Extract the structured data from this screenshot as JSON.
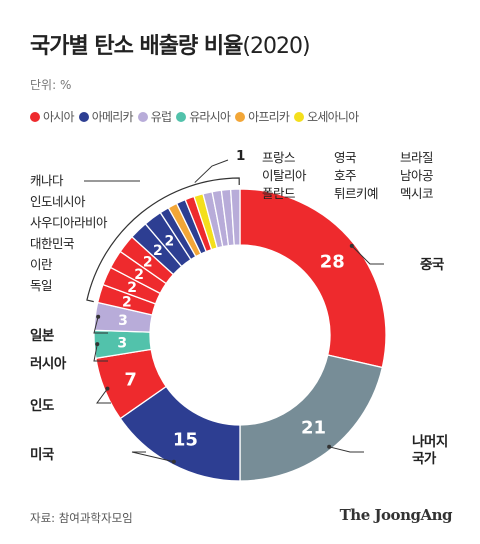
{
  "title": "국가별 탄소 배출량 비율",
  "title_year": "(2020)",
  "unit": "단위: %",
  "source": "자료: 참여과학자모임",
  "brand": "The JoongAng",
  "colors": {
    "asia": "#ee2a2d",
    "america": "#2d3e92",
    "europe": "#b8acd9",
    "eurasia": "#52c2ab",
    "africa": "#f2a637",
    "oceania": "#f4df1c",
    "rest": "#778d97"
  },
  "legend": [
    {
      "key": "asia",
      "label": "아시아"
    },
    {
      "key": "america",
      "label": "아메리카"
    },
    {
      "key": "europe",
      "label": "유럽"
    },
    {
      "key": "eurasia",
      "label": "유라시아"
    },
    {
      "key": "africa",
      "label": "아프리카"
    },
    {
      "key": "oceania",
      "label": "오세아니아"
    }
  ],
  "chart_data": {
    "type": "pie",
    "donut": true,
    "slices": [
      {
        "label": "중국",
        "value": 28,
        "region": "asia",
        "shown_value": "28"
      },
      {
        "label": "나머지 국가",
        "value": 21,
        "region": "rest",
        "shown_value": "21"
      },
      {
        "label": "미국",
        "value": 15,
        "region": "america",
        "shown_value": "15"
      },
      {
        "label": "인도",
        "value": 7,
        "region": "asia",
        "shown_value": "7"
      },
      {
        "label": "러시아",
        "value": 3,
        "region": "eurasia",
        "shown_value": "3"
      },
      {
        "label": "일본",
        "value": 3,
        "region": "europe",
        "shown_value": "3"
      },
      {
        "label": "독일",
        "value": 2,
        "region": "asia",
        "shown_value": "2"
      },
      {
        "label": "이란",
        "value": 2,
        "region": "asia",
        "shown_value": "2"
      },
      {
        "label": "대한민국",
        "value": 2,
        "region": "asia",
        "shown_value": "2"
      },
      {
        "label": "사우디아라비아",
        "value": 2,
        "region": "asia",
        "shown_value": "2"
      },
      {
        "label": "인도네시아",
        "value": 2,
        "region": "america",
        "shown_value": "2"
      },
      {
        "label": "캐나다",
        "value": 2,
        "region": "america",
        "shown_value": "2"
      },
      {
        "label": "멕시코",
        "value": 1,
        "region": "america",
        "shown_value": ""
      },
      {
        "label": "남아공",
        "value": 1,
        "region": "africa",
        "shown_value": ""
      },
      {
        "label": "브라질",
        "value": 1,
        "region": "america",
        "shown_value": ""
      },
      {
        "label": "튀르키예",
        "value": 1,
        "region": "asia",
        "shown_value": ""
      },
      {
        "label": "호주",
        "value": 1,
        "region": "oceania",
        "shown_value": ""
      },
      {
        "label": "영국",
        "value": 1,
        "region": "europe",
        "shown_value": ""
      },
      {
        "label": "폴란드",
        "value": 1,
        "region": "europe",
        "shown_value": ""
      },
      {
        "label": "이탈리아",
        "value": 1,
        "region": "europe",
        "shown_value": ""
      },
      {
        "label": "프랑스",
        "value": 1,
        "region": "europe",
        "shown_value": ""
      }
    ],
    "group_label": "1",
    "small_country_columns": [
      [
        "프랑스",
        "이탈리아",
        "폴란드"
      ],
      [
        "영국",
        "호주",
        "튀르키예"
      ],
      [
        "브라질",
        "남아공",
        "멕시코"
      ]
    ]
  }
}
